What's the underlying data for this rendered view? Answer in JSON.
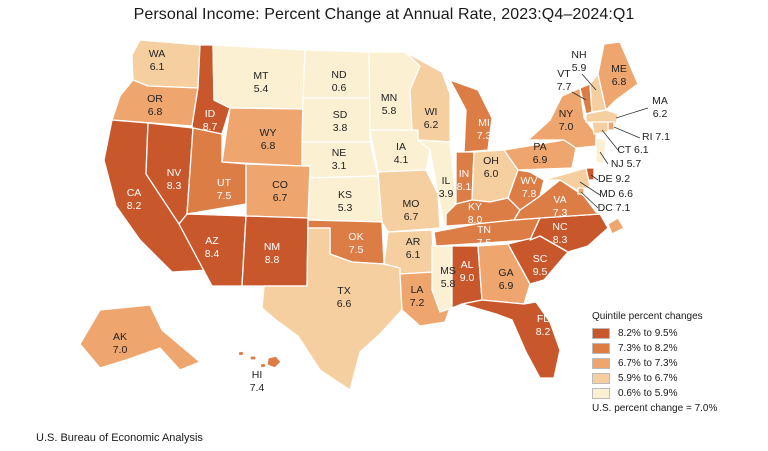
{
  "title": "Personal Income: Percent Change at Annual Rate, 2023:Q4–2024:Q1",
  "source": "U.S. Bureau of Economic Analysis",
  "legend": {
    "title": "Quintile percent changes",
    "items": [
      {
        "label": "8.2% to 9.5%",
        "color": "#c8582b"
      },
      {
        "label": "7.3% to 8.2%",
        "color": "#dc7d46"
      },
      {
        "label": "6.7% to 7.3%",
        "color": "#eea56e"
      },
      {
        "label": "5.9% to 6.7%",
        "color": "#f5cf9f"
      },
      {
        "label": "0.6% to 5.9%",
        "color": "#fcf0d3"
      }
    ],
    "us_note": "U.S. percent change = 7.0%"
  },
  "states": [
    {
      "abbr": "WA",
      "value": "6.1",
      "q": 3
    },
    {
      "abbr": "OR",
      "value": "6.8",
      "q": 2
    },
    {
      "abbr": "CA",
      "value": "8.2",
      "q": 0
    },
    {
      "abbr": "NV",
      "value": "8.3",
      "q": 0
    },
    {
      "abbr": "ID",
      "value": "8.7",
      "q": 0
    },
    {
      "abbr": "MT",
      "value": "5.4",
      "q": 4
    },
    {
      "abbr": "WY",
      "value": "6.8",
      "q": 2
    },
    {
      "abbr": "UT",
      "value": "7.5",
      "q": 1
    },
    {
      "abbr": "AZ",
      "value": "8.4",
      "q": 0
    },
    {
      "abbr": "CO",
      "value": "6.7",
      "q": 2
    },
    {
      "abbr": "NM",
      "value": "8.8",
      "q": 0
    },
    {
      "abbr": "ND",
      "value": "0.6",
      "q": 4
    },
    {
      "abbr": "SD",
      "value": "3.8",
      "q": 4
    },
    {
      "abbr": "NE",
      "value": "3.1",
      "q": 4
    },
    {
      "abbr": "KS",
      "value": "5.3",
      "q": 4
    },
    {
      "abbr": "OK",
      "value": "7.5",
      "q": 1
    },
    {
      "abbr": "TX",
      "value": "6.6",
      "q": 3
    },
    {
      "abbr": "MN",
      "value": "5.8",
      "q": 4
    },
    {
      "abbr": "IA",
      "value": "4.1",
      "q": 4
    },
    {
      "abbr": "MO",
      "value": "6.7",
      "q": 3
    },
    {
      "abbr": "AR",
      "value": "6.1",
      "q": 3
    },
    {
      "abbr": "LA",
      "value": "7.2",
      "q": 2
    },
    {
      "abbr": "WI",
      "value": "6.2",
      "q": 3
    },
    {
      "abbr": "IL",
      "value": "3.9",
      "q": 4
    },
    {
      "abbr": "MI",
      "value": "7.3",
      "q": 1
    },
    {
      "abbr": "IN",
      "value": "8.1",
      "q": 1
    },
    {
      "abbr": "OH",
      "value": "6.0",
      "q": 3
    },
    {
      "abbr": "KY",
      "value": "8.0",
      "q": 1
    },
    {
      "abbr": "TN",
      "value": "7.5",
      "q": 1
    },
    {
      "abbr": "MS",
      "value": "5.8",
      "q": 4
    },
    {
      "abbr": "AL",
      "value": "9.0",
      "q": 0
    },
    {
      "abbr": "GA",
      "value": "6.9",
      "q": 2
    },
    {
      "abbr": "FL",
      "value": "8.2",
      "q": 0
    },
    {
      "abbr": "SC",
      "value": "9.5",
      "q": 0
    },
    {
      "abbr": "NC",
      "value": "8.3",
      "q": 0
    },
    {
      "abbr": "VA",
      "value": "7.3",
      "q": 1
    },
    {
      "abbr": "WV",
      "value": "7.8",
      "q": 1
    },
    {
      "abbr": "PA",
      "value": "6.9",
      "q": 2
    },
    {
      "abbr": "NY",
      "value": "7.0",
      "q": 2
    },
    {
      "abbr": "VT",
      "value": "7.7",
      "q": 1
    },
    {
      "abbr": "NH",
      "value": "5.9",
      "q": 3
    },
    {
      "abbr": "ME",
      "value": "6.8",
      "q": 2
    },
    {
      "abbr": "MA",
      "value": "6.2",
      "q": 3
    },
    {
      "abbr": "RI",
      "value": "7.1",
      "q": 2
    },
    {
      "abbr": "CT",
      "value": "6.1",
      "q": 3
    },
    {
      "abbr": "NJ",
      "value": "5.7",
      "q": 4
    },
    {
      "abbr": "DE",
      "value": "9.2",
      "q": 0
    },
    {
      "abbr": "MD",
      "value": "6.6",
      "q": 3
    },
    {
      "abbr": "DC",
      "value": "7.1",
      "q": 2
    },
    {
      "abbr": "AK",
      "value": "7.0",
      "q": 2
    },
    {
      "abbr": "HI",
      "value": "7.4",
      "q": 1
    }
  ]
}
